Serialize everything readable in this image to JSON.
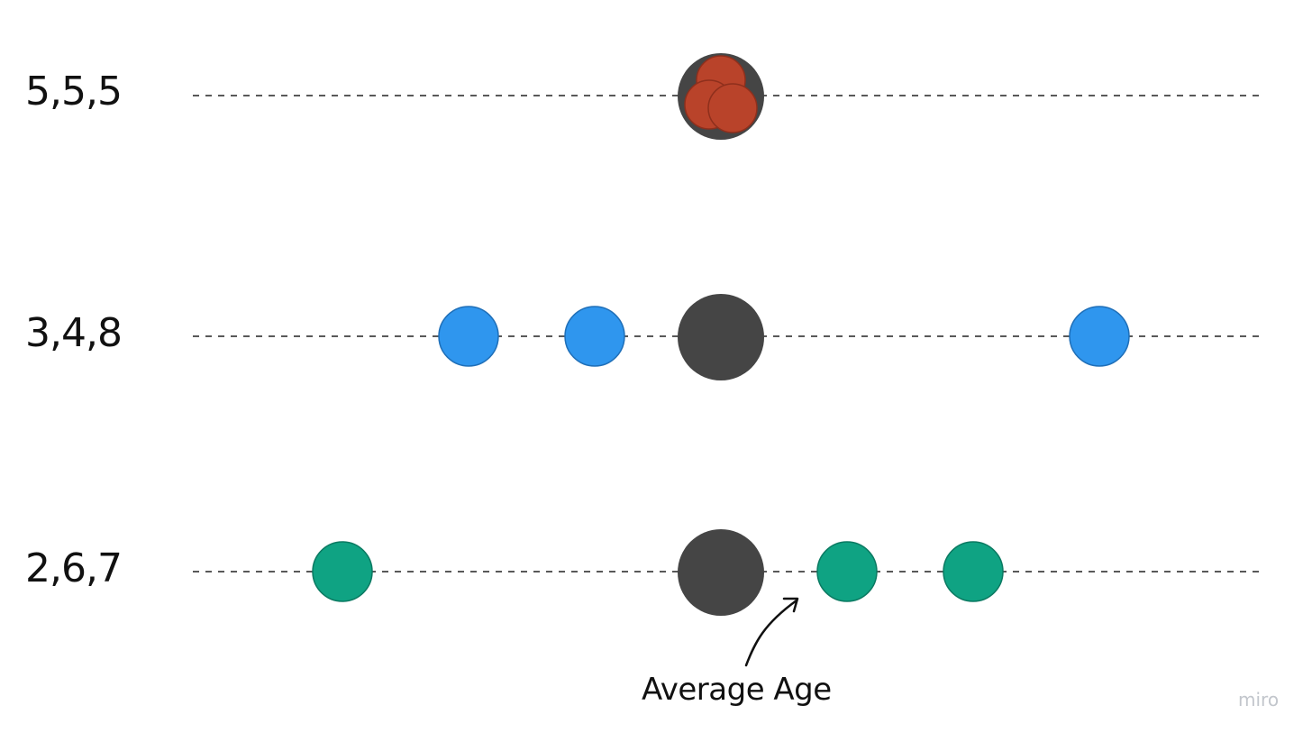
{
  "rows": [
    {
      "label": "5,5,5",
      "values": [
        5,
        5,
        5
      ],
      "average": 5,
      "color": "#b9432a",
      "stroke": "#8e2f1c"
    },
    {
      "label": "3,4,8",
      "values": [
        3,
        4,
        8
      ],
      "average": 5,
      "color": "#2f96ee",
      "stroke": "#1f6fb8"
    },
    {
      "label": "2,6,7",
      "values": [
        2,
        6,
        7
      ],
      "average": 5,
      "color": "#0fa383",
      "stroke": "#0b7a62"
    }
  ],
  "average_marker_color": "#454545",
  "annotation": {
    "label": "Average Age"
  },
  "watermark": "miro"
}
